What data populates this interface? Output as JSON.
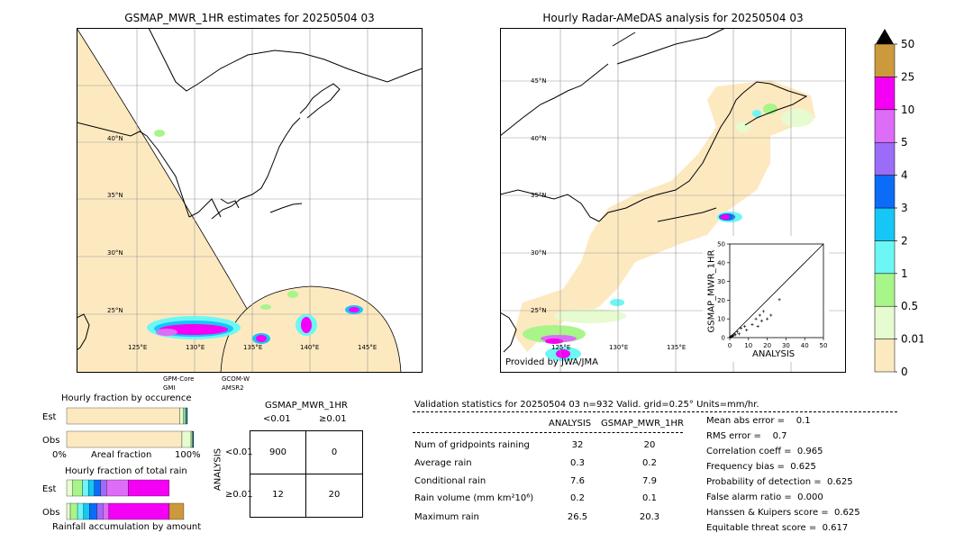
{
  "left_map": {
    "title": "GSMAP_MWR_1HR estimates for 20250504 03",
    "lat_labels": [
      "40°N",
      "35°N",
      "30°N",
      "25°N"
    ],
    "lon_labels": [
      "125°E",
      "130°E",
      "135°E",
      "140°E",
      "145°E"
    ],
    "swath_labels": {
      "a1": "GPM-Core",
      "a2": "GMI",
      "b1": "GCOM-W",
      "b2": "AMSR2"
    }
  },
  "right_map": {
    "title": "Hourly Radar-AMeDAS analysis for 20250504 03",
    "lat_labels": [
      "45°N",
      "40°N",
      "35°N",
      "30°N",
      "25°N"
    ],
    "lon_labels": [
      "125°E",
      "130°E",
      "135°E"
    ],
    "credit": "Provided by JWA/JMA"
  },
  "chart_data": [
    {
      "type": "scatter",
      "title": "",
      "xlabel": "ANALYSIS",
      "ylabel": "GSMAP_MWR_1HR",
      "xlim": [
        0,
        50
      ],
      "ylim": [
        0,
        50
      ],
      "ticks": [
        0,
        10,
        20,
        30,
        40,
        50
      ],
      "points": [
        [
          0.3,
          0.2
        ],
        [
          0.5,
          0.4
        ],
        [
          0.8,
          0.6
        ],
        [
          1,
          0.5
        ],
        [
          1.2,
          1
        ],
        [
          1.5,
          0.8
        ],
        [
          2,
          1.2
        ],
        [
          2.5,
          2
        ],
        [
          3,
          1.5
        ],
        [
          4,
          3
        ],
        [
          5,
          2
        ],
        [
          6,
          5
        ],
        [
          8,
          6
        ],
        [
          9,
          4
        ],
        [
          12,
          7
        ],
        [
          14,
          10
        ],
        [
          15,
          6
        ],
        [
          16,
          12
        ],
        [
          17,
          9
        ],
        [
          18,
          14
        ],
        [
          20,
          10
        ],
        [
          22,
          12
        ],
        [
          26.5,
          20.3
        ]
      ]
    },
    {
      "type": "colorbar",
      "levels": [
        "0",
        "0.01",
        "0.5",
        "1",
        "2",
        "3",
        "4",
        "5",
        "10",
        "25",
        "50"
      ],
      "colors": [
        "#fde9c0",
        "#e6fbd0",
        "#a8f58a",
        "#6cf7f4",
        "#16c6f7",
        "#0b6cf7",
        "#9a6cf7",
        "#dd6cf7",
        "#f400f4",
        "#cc9a3c"
      ]
    },
    {
      "type": "bar",
      "title": "Hourly fraction by occurence",
      "categories": [
        "Est",
        "Obs"
      ],
      "xlabel_left": "0%",
      "xlabel_mid": "Areal fraction",
      "xlabel_right": "100%",
      "series": [
        {
          "values": [
            0.937,
            0.955
          ]
        },
        {
          "values": [
            0.03,
            0.075
          ]
        },
        {
          "values": [
            0.015,
            0.01
          ]
        },
        {
          "values": [
            0.01,
            0.007
          ]
        },
        {
          "values": [
            0.004,
            0.004
          ]
        },
        {
          "values": [
            0.004,
            0.002
          ]
        }
      ]
    },
    {
      "type": "bar",
      "title": "Hourly fraction of total rain",
      "categories": [
        "Est",
        "Obs"
      ],
      "xlabel_mid": "Rainfall accumulation by amount",
      "series": [
        {
          "values": [
            0.05,
            0.03
          ]
        },
        {
          "values": [
            0.08,
            0.06
          ]
        },
        {
          "values": [
            0.05,
            0.05
          ]
        },
        {
          "values": [
            0.05,
            0.05
          ]
        },
        {
          "values": [
            0.05,
            0.06
          ]
        },
        {
          "values": [
            0.05,
            0.05
          ]
        },
        {
          "values": [
            0.18,
            0.05
          ]
        },
        {
          "values": [
            0.34,
            0.5
          ]
        },
        {
          "values": [
            0,
            0.12
          ]
        }
      ]
    },
    {
      "type": "table",
      "title": "GSMAP_MWR_1HR",
      "col_headers": [
        "<0.01",
        "≥0.01"
      ],
      "row_axis": "ANALYSIS",
      "row_headers": [
        "<0.01",
        "≥0.01"
      ],
      "cells": [
        [
          "900",
          "0"
        ],
        [
          "12",
          "20"
        ]
      ]
    }
  ],
  "validation": {
    "header": "Validation statistics for 20250504 03  n=932 Valid. grid=0.25° Units=mm/hr.",
    "col_analysis": "ANALYSIS",
    "col_gsmap": "GSMAP_MWR_1HR",
    "rows": [
      {
        "label": "Num of gridpoints raining",
        "a": "32",
        "g": "20"
      },
      {
        "label": "Average rain",
        "a": "0.3",
        "g": "0.2"
      },
      {
        "label": "Conditional rain",
        "a": "7.6",
        "g": "7.9"
      },
      {
        "label": "Rain volume (mm km²10⁶)",
        "a": "0.2",
        "g": "0.1"
      },
      {
        "label": "Maximum rain",
        "a": "26.5",
        "g": "20.3"
      }
    ],
    "scores": [
      "Mean abs error =    0.1",
      "RMS error =    0.7",
      "Correlation coeff =  0.965",
      "Frequency bias =  0.625",
      "Probability of detection =  0.625",
      "False alarm ratio =  0.000",
      "Hanssen & Kuipers score =  0.625",
      "Equitable threat score =  0.617"
    ]
  }
}
